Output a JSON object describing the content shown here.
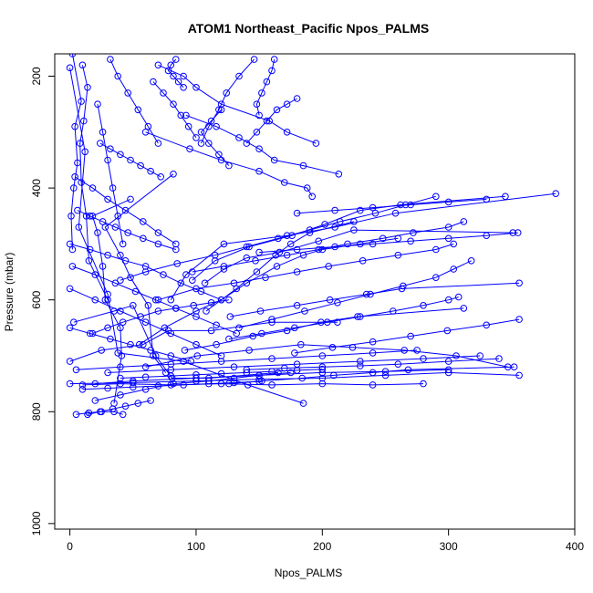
{
  "chart_data": {
    "type": "line",
    "title": "ATOM1 Northeast_Pacific Npos_PALMS",
    "xlabel": "Npos_PALMS",
    "ylabel": "Pressure (mbar)",
    "xlim": [
      -12,
      400
    ],
    "ylim": [
      1010,
      160
    ],
    "y_reversed": true,
    "x_ticks": [
      0,
      100,
      200,
      300,
      400
    ],
    "y_ticks": [
      200,
      400,
      600,
      800,
      1000
    ],
    "grid": false,
    "legend": "none",
    "series_color": "#0000ff",
    "marker": "open-circle",
    "series": [
      {
        "x": [
          0,
          12,
          7,
          30,
          38,
          90,
          141,
          185
        ],
        "y": [
          185,
          335,
          470,
          590,
          695,
          710,
          752,
          785
        ]
      },
      {
        "x": [
          2,
          9,
          4,
          6,
          3,
          1,
          2
        ],
        "y": [
          160,
          245,
          290,
          355,
          400,
          450,
          510
        ]
      },
      {
        "x": [
          10,
          14,
          11,
          8,
          9,
          13,
          15,
          30
        ],
        "y": [
          180,
          220,
          280,
          320,
          390,
          450,
          530,
          600
        ]
      },
      {
        "x": [
          48,
          18,
          22,
          26,
          28,
          40,
          41,
          35
        ],
        "y": [
          420,
          450,
          480,
          540,
          600,
          650,
          700,
          785
        ]
      },
      {
        "x": [
          82,
          28,
          40,
          48,
          62,
          66,
          76
        ],
        "y": [
          375,
          470,
          520,
          560,
          610,
          700,
          730
        ]
      },
      {
        "x": [
          3,
          35,
          50,
          68,
          81,
          110,
          165
        ],
        "y": [
          640,
          620,
          610,
          700,
          740,
          740,
          730
        ]
      },
      {
        "x": [
          0,
          25,
          58,
          78,
          112,
          160,
          212
        ],
        "y": [
          710,
          690,
          680,
          655,
          655,
          640,
          640
        ]
      },
      {
        "x": [
          385,
          258,
          210,
          172,
          122,
          92,
          80
        ],
        "y": [
          410,
          445,
          470,
          485,
          500,
          555,
          600
        ]
      },
      {
        "x": [
          345,
          262,
          230,
          202,
          176,
          142,
          115,
          97
        ],
        "y": [
          415,
          430,
          440,
          465,
          485,
          505,
          530,
          565
        ]
      },
      {
        "x": [
          351,
          225,
          197,
          166,
          140,
          122,
          107
        ],
        "y": [
          480,
          475,
          495,
          515,
          525,
          545,
          570
        ]
      },
      {
        "x": [
          356,
          263,
          235,
          206,
          180,
          151,
          127
        ],
        "y": [
          570,
          580,
          590,
          600,
          610,
          620,
          630
        ]
      },
      {
        "x": [
          312,
          228,
          199,
          172,
          145,
          116,
          91
        ],
        "y": [
          615,
          630,
          640,
          655,
          665,
          680,
          690
        ]
      },
      {
        "x": [
          356,
          330,
          299,
          270,
          240,
          208,
          178
        ],
        "y": [
          635,
          645,
          655,
          665,
          675,
          685,
          695
        ]
      },
      {
        "x": [
          352,
          268,
          240,
          209,
          184,
          152,
          126
        ],
        "y": [
          720,
          725,
          730,
          735,
          740,
          745,
          750
        ]
      },
      {
        "x": [
          356,
          300,
          250,
          200,
          150,
          100,
          50,
          0
        ],
        "y": [
          735,
          730,
          735,
          740,
          742,
          745,
          748,
          750
        ]
      },
      {
        "x": [
          300,
          250,
          200,
          150,
          100,
          50,
          20
        ],
        "y": [
          725,
          728,
          730,
          735,
          740,
          745,
          750
        ]
      },
      {
        "x": [
          280,
          240,
          200,
          160,
          120,
          80,
          40,
          10
        ],
        "y": [
          750,
          752,
          750,
          752,
          750,
          752,
          750,
          752
        ]
      },
      {
        "x": [
          325,
          280,
          230,
          180,
          130,
          80,
          30
        ],
        "y": [
          700,
          705,
          710,
          715,
          720,
          725,
          730
        ]
      },
      {
        "x": [
          275,
          240,
          200,
          160,
          120,
          80,
          40,
          5
        ],
        "y": [
          690,
          695,
          700,
          705,
          710,
          715,
          720,
          725
        ]
      },
      {
        "x": [
          347,
          306,
          265,
          224,
          183,
          142,
          101,
          60
        ],
        "y": [
          720,
          700,
          690,
          685,
          680,
          690,
          700,
          720
        ]
      },
      {
        "x": [
          213,
          185,
          162,
          150,
          134,
          116,
          92
        ],
        "y": [
          375,
          360,
          350,
          330,
          310,
          290,
          270
        ]
      },
      {
        "x": [
          225,
          190,
          175,
          163,
          148,
          132,
          108
        ],
        "y": [
          460,
          480,
          500,
          520,
          550,
          580,
          620
        ]
      },
      {
        "x": [
          195,
          172,
          158,
          120,
          100,
          90,
          70
        ],
        "y": [
          320,
          300,
          280,
          250,
          220,
          200,
          180
        ]
      },
      {
        "x": [
          192,
          188,
          170,
          150,
          120,
          95,
          60
        ],
        "y": [
          415,
          400,
          390,
          370,
          350,
          330,
          300
        ]
      },
      {
        "x": [
          260,
          230,
          200,
          185,
          164,
          140,
          120,
          100,
          75,
          55
        ],
        "y": [
          490,
          500,
          510,
          520,
          540,
          570,
          600,
          620,
          650,
          680
        ]
      },
      {
        "x": [
          290,
          266,
          242,
          214,
          190,
          165,
          140,
          115,
          85,
          60,
          40
        ],
        "y": [
          415,
          430,
          445,
          460,
          475,
          490,
          505,
          520,
          535,
          550,
          565
        ]
      },
      {
        "x": [
          312,
          300,
          272,
          248,
          220,
          197,
          172,
          147,
          122,
          97
        ],
        "y": [
          460,
          470,
          480,
          490,
          500,
          510,
          520,
          530,
          540,
          550
        ]
      },
      {
        "x": [
          304,
          290,
          260,
          232,
          205,
          180,
          155,
          130,
          100,
          70
        ],
        "y": [
          500,
          510,
          520,
          530,
          540,
          550,
          560,
          570,
          580,
          600
        ]
      },
      {
        "x": [
          318,
          304,
          290,
          264,
          238,
          212,
          186,
          160,
          134
        ],
        "y": [
          530,
          545,
          560,
          575,
          590,
          605,
          620,
          635,
          650
        ]
      },
      {
        "x": [
          308,
          300,
          280,
          256,
          230,
          204,
          178,
          152,
          126
        ],
        "y": [
          595,
          600,
          610,
          620,
          630,
          640,
          650,
          660,
          670
        ]
      },
      {
        "x": [
          20,
          40,
          60,
          82,
          110,
          130,
          150,
          175
        ],
        "y": [
          780,
          770,
          760,
          750,
          745,
          740,
          735,
          730
        ]
      },
      {
        "x": [
          14,
          24,
          34,
          44,
          54,
          64
        ],
        "y": [
          805,
          800,
          795,
          790,
          785,
          780
        ]
      },
      {
        "x": [
          5,
          15,
          25,
          35,
          42
        ],
        "y": [
          805,
          802,
          800,
          800,
          805
        ]
      },
      {
        "x": [
          18,
          30,
          42,
          56,
          70,
          84,
          98,
          112,
          126
        ],
        "y": [
          660,
          650,
          640,
          630,
          620,
          615,
          610,
          605,
          600
        ]
      },
      {
        "x": [
          2,
          20,
          36,
          52,
          68,
          84,
          100,
          116,
          132
        ],
        "y": [
          540,
          555,
          570,
          585,
          600,
          615,
          630,
          645,
          660
        ]
      },
      {
        "x": [
          0,
          16,
          30,
          44,
          60,
          74,
          88,
          104,
          120
        ],
        "y": [
          500,
          510,
          520,
          530,
          540,
          555,
          570,
          585,
          600
        ]
      },
      {
        "x": [
          6,
          16,
          26,
          36,
          46,
          58,
          70,
          84
        ],
        "y": [
          440,
          450,
          460,
          470,
          480,
          490,
          500,
          510
        ]
      },
      {
        "x": [
          24,
          32,
          40,
          48,
          56,
          64,
          72
        ],
        "y": [
          320,
          330,
          340,
          350,
          360,
          370,
          380
        ]
      },
      {
        "x": [
          66,
          74,
          82,
          88,
          94,
          100
        ],
        "y": [
          210,
          230,
          250,
          270,
          290,
          310
        ]
      },
      {
        "x": [
          84,
          80,
          78,
          82,
          86,
          90
        ],
        "y": [
          170,
          180,
          190,
          200,
          210,
          220
        ]
      },
      {
        "x": [
          120,
          112,
          104,
          110,
          118,
          126
        ],
        "y": [
          260,
          280,
          300,
          320,
          340,
          360
        ]
      },
      {
        "x": [
          162,
          160,
          156,
          152,
          148,
          150
        ],
        "y": [
          170,
          190,
          210,
          230,
          250,
          270
        ]
      },
      {
        "x": [
          180,
          172,
          164,
          156,
          148,
          140
        ],
        "y": [
          240,
          250,
          260,
          280,
          300,
          320
        ]
      },
      {
        "x": [
          146,
          134,
          124,
          118,
          110,
          104
        ],
        "y": [
          170,
          200,
          230,
          260,
          290,
          320
        ]
      },
      {
        "x": [
          340,
          300,
          260,
          230,
          200,
          170,
          140
        ],
        "y": [
          705,
          710,
          715,
          718,
          720,
          722,
          725
        ]
      },
      {
        "x": [
          40,
          60,
          80,
          100,
          120,
          140,
          160,
          180,
          200
        ],
        "y": [
          740,
          738,
          736,
          734,
          732,
          730,
          728,
          726,
          724
        ]
      },
      {
        "x": [
          10,
          30,
          50,
          70,
          90,
          110,
          130,
          150
        ],
        "y": [
          760,
          758,
          756,
          754,
          752,
          750,
          748,
          746
        ]
      },
      {
        "x": [
          0,
          16,
          32,
          48,
          64,
          80,
          96
        ],
        "y": [
          650,
          660,
          670,
          680,
          690,
          700,
          710
        ]
      },
      {
        "x": [
          0,
          20,
          40,
          60,
          80,
          100,
          120
        ],
        "y": [
          580,
          600,
          620,
          640,
          660,
          680,
          700
        ]
      },
      {
        "x": [
          4,
          18,
          30,
          44,
          58,
          70,
          84
        ],
        "y": [
          380,
          400,
          420,
          440,
          460,
          480,
          500
        ]
      },
      {
        "x": [
          22,
          26,
          30,
          34,
          38,
          42
        ],
        "y": [
          250,
          300,
          350,
          400,
          450,
          500
        ]
      },
      {
        "x": [
          32,
          38,
          46,
          54,
          62,
          70
        ],
        "y": [
          170,
          200,
          230,
          260,
          290,
          320
        ]
      },
      {
        "x": [
          355,
          330,
          300,
          270,
          240,
          210,
          180,
          150
        ],
        "y": [
          480,
          485,
          490,
          495,
          500,
          505,
          510,
          515
        ]
      },
      {
        "x": [
          330,
          300,
          270,
          240,
          210,
          180
        ],
        "y": [
          420,
          425,
          430,
          435,
          440,
          445
        ]
      }
    ]
  }
}
